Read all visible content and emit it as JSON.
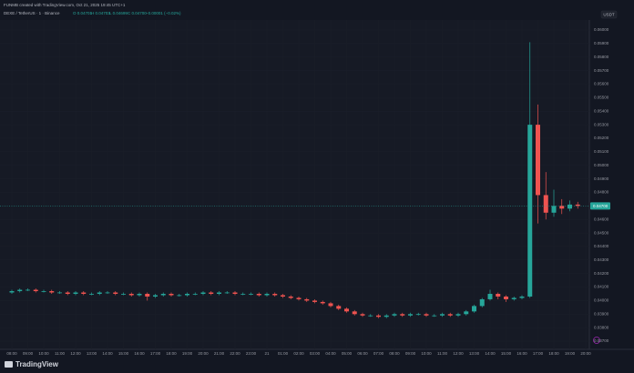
{
  "header": {
    "credit": "FUNMB created with TradingView.com, Oct 21, 2025 19:45 UTC+1",
    "symbol": "DEXE / TetherUS · 1 · Binance",
    "ohlc": [
      "O 0.04701",
      "H 0.04703",
      "L 0.04699",
      "C 0.04700",
      "−0.00001 (−0.02%)"
    ],
    "currency": "USDT",
    "brand": "TradingView"
  },
  "chart_data": {
    "type": "candlestick",
    "up_color": "#26a69a",
    "down_color": "#ef5350",
    "x_labels": [
      "08:00",
      "09:00",
      "10:00",
      "11:00",
      "12:00",
      "13:00",
      "14:00",
      "15:00",
      "16:00",
      "17:00",
      "18:00",
      "19:00",
      "20:00",
      "21:00",
      "22:00",
      "23:00",
      "21",
      "01:00",
      "02:00",
      "03:00",
      "04:00",
      "05:00",
      "06:00",
      "07:00",
      "08:00",
      "09:00",
      "10:00",
      "11:00",
      "12:00",
      "13:00",
      "14:00",
      "15:00",
      "16:00",
      "17:00",
      "18:00",
      "19:00",
      "20:00"
    ],
    "ylim": [
      0.03633,
      0.06054
    ],
    "yticks": [
      {
        "value": 0.06,
        "label": "0.06000"
      },
      {
        "value": 0.059,
        "label": "0.05900"
      },
      {
        "value": 0.058,
        "label": "0.05800"
      },
      {
        "value": 0.057,
        "label": "0.05700"
      },
      {
        "value": 0.056,
        "label": "0.05600"
      },
      {
        "value": 0.055,
        "label": "0.05500"
      },
      {
        "value": 0.054,
        "label": "0.05400"
      },
      {
        "value": 0.053,
        "label": "0.05300"
      },
      {
        "value": 0.052,
        "label": "0.05200"
      },
      {
        "value": 0.051,
        "label": "0.05100"
      },
      {
        "value": 0.05,
        "label": "0.05000"
      },
      {
        "value": 0.049,
        "label": "0.04900"
      },
      {
        "value": 0.048,
        "label": "0.04800"
      },
      {
        "value": 0.046,
        "label": "0.04600"
      },
      {
        "value": 0.045,
        "label": "0.04500"
      },
      {
        "value": 0.044,
        "label": "0.04400"
      },
      {
        "value": 0.043,
        "label": "0.04300"
      },
      {
        "value": 0.042,
        "label": "0.04200"
      },
      {
        "value": 0.041,
        "label": "0.04100"
      },
      {
        "value": 0.04,
        "label": "0.04000"
      },
      {
        "value": 0.039,
        "label": "0.03900"
      },
      {
        "value": 0.038,
        "label": "0.03800"
      },
      {
        "value": 0.037,
        "label": "0.03700"
      }
    ],
    "last": {
      "value": 0.047,
      "label": "0.04700"
    },
    "ohlc": [
      [
        0.0406,
        0.0408,
        0.0405,
        0.0407
      ],
      [
        0.0407,
        0.0409,
        0.0406,
        0.0408
      ],
      [
        0.0408,
        0.0409,
        0.0407,
        0.0408
      ],
      [
        0.0408,
        0.0409,
        0.0406,
        0.0407
      ],
      [
        0.0407,
        0.0408,
        0.0406,
        0.0407
      ],
      [
        0.0407,
        0.0408,
        0.0405,
        0.0406
      ],
      [
        0.0406,
        0.0407,
        0.0405,
        0.0406
      ],
      [
        0.0406,
        0.0407,
        0.0404,
        0.0405
      ],
      [
        0.0405,
        0.0407,
        0.0404,
        0.0406
      ],
      [
        0.0406,
        0.0407,
        0.0404,
        0.0405
      ],
      [
        0.0405,
        0.0406,
        0.0404,
        0.0405
      ],
      [
        0.0405,
        0.0407,
        0.0404,
        0.0406
      ],
      [
        0.0406,
        0.0407,
        0.0405,
        0.0406
      ],
      [
        0.0406,
        0.0407,
        0.0404,
        0.0405
      ],
      [
        0.0405,
        0.0406,
        0.0404,
        0.0405
      ],
      [
        0.0405,
        0.0406,
        0.0403,
        0.0404
      ],
      [
        0.0404,
        0.0406,
        0.0403,
        0.0405
      ],
      [
        0.0405,
        0.0406,
        0.04,
        0.0403
      ],
      [
        0.0403,
        0.0405,
        0.0402,
        0.0404
      ],
      [
        0.0404,
        0.0406,
        0.0403,
        0.0405
      ],
      [
        0.0405,
        0.0406,
        0.0403,
        0.0404
      ],
      [
        0.0404,
        0.0405,
        0.0403,
        0.0404
      ],
      [
        0.0404,
        0.0406,
        0.0403,
        0.0405
      ],
      [
        0.0405,
        0.0406,
        0.0404,
        0.0405
      ],
      [
        0.0405,
        0.0407,
        0.0404,
        0.0406
      ],
      [
        0.0406,
        0.0407,
        0.0404,
        0.0405
      ],
      [
        0.0405,
        0.0407,
        0.0404,
        0.0406
      ],
      [
        0.0406,
        0.0407,
        0.0405,
        0.0406
      ],
      [
        0.0406,
        0.0407,
        0.0404,
        0.0405
      ],
      [
        0.0405,
        0.0406,
        0.0404,
        0.0405
      ],
      [
        0.0405,
        0.0406,
        0.0404,
        0.0405
      ],
      [
        0.0405,
        0.0406,
        0.0403,
        0.0404
      ],
      [
        0.0404,
        0.0406,
        0.0403,
        0.0405
      ],
      [
        0.0405,
        0.0406,
        0.0403,
        0.0404
      ],
      [
        0.0404,
        0.0405,
        0.0402,
        0.0403
      ],
      [
        0.0403,
        0.0404,
        0.0401,
        0.0402
      ],
      [
        0.0402,
        0.0403,
        0.04,
        0.0401
      ],
      [
        0.0401,
        0.0402,
        0.0399,
        0.04
      ],
      [
        0.04,
        0.0401,
        0.0398,
        0.0399
      ],
      [
        0.0399,
        0.04,
        0.0397,
        0.0398
      ],
      [
        0.0398,
        0.0399,
        0.0395,
        0.0396
      ],
      [
        0.0396,
        0.0397,
        0.0393,
        0.0394
      ],
      [
        0.0394,
        0.0395,
        0.0391,
        0.0392
      ],
      [
        0.0392,
        0.0393,
        0.0389,
        0.039
      ],
      [
        0.039,
        0.0391,
        0.0388,
        0.0389
      ],
      [
        0.0389,
        0.039,
        0.0388,
        0.0389
      ],
      [
        0.0389,
        0.039,
        0.0387,
        0.0388
      ],
      [
        0.0388,
        0.039,
        0.0387,
        0.0389
      ],
      [
        0.0389,
        0.0391,
        0.0388,
        0.039
      ],
      [
        0.039,
        0.0391,
        0.0388,
        0.0389
      ],
      [
        0.0389,
        0.0391,
        0.0388,
        0.039
      ],
      [
        0.039,
        0.0391,
        0.0389,
        0.039
      ],
      [
        0.039,
        0.0391,
        0.0388,
        0.0389
      ],
      [
        0.0389,
        0.039,
        0.0388,
        0.0389
      ],
      [
        0.0389,
        0.0391,
        0.0388,
        0.039
      ],
      [
        0.039,
        0.0391,
        0.0388,
        0.0389
      ],
      [
        0.0389,
        0.0391,
        0.0388,
        0.039
      ],
      [
        0.039,
        0.0393,
        0.0389,
        0.0392
      ],
      [
        0.0392,
        0.0397,
        0.0391,
        0.0396
      ],
      [
        0.0396,
        0.0402,
        0.0395,
        0.0401
      ],
      [
        0.0401,
        0.0408,
        0.04,
        0.0405
      ],
      [
        0.0405,
        0.0406,
        0.0401,
        0.0403
      ],
      [
        0.0403,
        0.0404,
        0.0399,
        0.0401
      ],
      [
        0.0401,
        0.0403,
        0.04,
        0.0402
      ],
      [
        0.0402,
        0.0404,
        0.0401,
        0.0403
      ],
      [
        0.0403,
        0.0591,
        0.0402,
        0.053
      ],
      [
        0.053,
        0.0545,
        0.0457,
        0.0478
      ],
      [
        0.0478,
        0.0495,
        0.046,
        0.0465
      ],
      [
        0.0465,
        0.0482,
        0.0462,
        0.047
      ],
      [
        0.047,
        0.0475,
        0.0464,
        0.0468
      ],
      [
        0.0468,
        0.0474,
        0.0466,
        0.0471
      ],
      [
        0.0471,
        0.0473,
        0.0468,
        0.047
      ]
    ]
  }
}
